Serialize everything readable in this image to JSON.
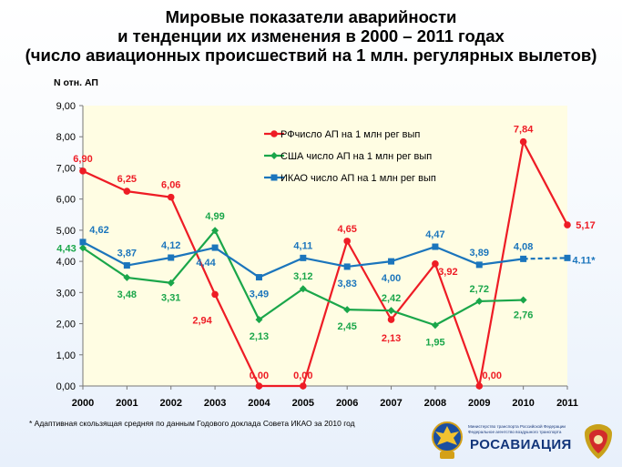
{
  "title": {
    "line1": "Мировые показатели аварийности",
    "line2": "и тенденции их изменения в 2000 – 2011 годах",
    "line3": "(число авиационных происшествий на 1 млн. регулярных вылетов)"
  },
  "chart_data": {
    "type": "line",
    "ylabel": "N отн. АП",
    "xlabel": "",
    "ylim": [
      0,
      9
    ],
    "y_tick_step": 1,
    "y_tick_labels": [
      "0,00",
      "1,00",
      "2,00",
      "3,00",
      "4,00",
      "5,00",
      "6,00",
      "7,00",
      "8,00",
      "9,00"
    ],
    "categories": [
      "2000",
      "2001",
      "2002",
      "2003",
      "2004",
      "2005",
      "2006",
      "2007",
      "2008",
      "2009",
      "2010",
      "2011"
    ],
    "grid": false,
    "legend_position": "top-left",
    "series": [
      {
        "name": "РФчисло АП на 1 млн рег вып",
        "color": "#ee1c25",
        "marker": "circle",
        "values": [
          6.9,
          6.25,
          6.06,
          2.94,
          0.0,
          0.0,
          4.65,
          2.13,
          3.92,
          0.0,
          7.84,
          5.17
        ],
        "labels": [
          "6,90",
          "6,25",
          "6,06",
          "2,94",
          "0,00",
          "0,00",
          "4,65",
          "2,13",
          "3,92",
          "0,00",
          "7,84",
          "5,17"
        ]
      },
      {
        "name": "США число АП на 1 млн рег вып",
        "color": "#1aa64a",
        "marker": "diamond",
        "values": [
          4.43,
          3.48,
          3.31,
          4.99,
          2.13,
          3.12,
          2.45,
          2.42,
          1.95,
          2.72,
          2.76,
          null
        ],
        "labels": [
          "4,43",
          "3,48",
          "3,31",
          "4,99",
          "2,13",
          "3,12",
          "2,45",
          "2,42",
          "1,95",
          "2,72",
          "2,76",
          null
        ]
      },
      {
        "name": "ИКАО число АП на 1 млн рег вып",
        "color": "#1b75bc",
        "marker": "square",
        "values": [
          4.62,
          3.87,
          4.12,
          4.44,
          3.49,
          4.11,
          3.83,
          4.0,
          4.47,
          3.89,
          4.08,
          4.11
        ],
        "labels": [
          "4,62",
          "3,87",
          "4,12",
          "4,44",
          "3,49",
          "4,11",
          "3,83",
          "4,00",
          "4,47",
          "3,89",
          "4,08",
          "4.11*"
        ],
        "dashed_last_segment": true
      }
    ]
  },
  "footnote": "* Адаптивная скользящая  средняя по данным  Годового доклада Совета ИКАО за 2010 год",
  "agency": {
    "small_line1": "Министерство транспорта Российской Федерации",
    "small_line2": "Федеральное агентство воздушного транспорта",
    "name": "РОСАВИАЦИЯ",
    "emblem_left_icon": "eagle-emblem-icon",
    "emblem_right_icon": "coat-of-arms-icon"
  }
}
